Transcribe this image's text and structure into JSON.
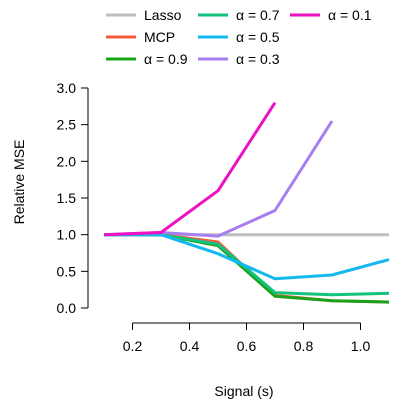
{
  "chart_data": {
    "type": "line",
    "title": "",
    "xlabel": "Signal (s)",
    "ylabel": "Relative MSE",
    "x": [
      0.1,
      0.3,
      0.5,
      0.7,
      0.9,
      1.1
    ],
    "xlim": [
      0.1,
      1.1
    ],
    "ylim": [
      0.0,
      3.0
    ],
    "xticks": [
      0.2,
      0.4,
      0.6,
      0.8,
      1.0
    ],
    "xtick_labels": [
      "0.2",
      "0.4",
      "0.6",
      "0.8",
      "1.0"
    ],
    "yticks": [
      0.0,
      0.5,
      1.0,
      1.5,
      2.0,
      2.5,
      3.0
    ],
    "ytick_labels": [
      "0.0",
      "0.5",
      "1.0",
      "1.5",
      "2.0",
      "2.5",
      "3.0"
    ],
    "grid": false,
    "legend_position": "top",
    "series": [
      {
        "name": "Lasso",
        "color": "#bebebe",
        "x": [
          0.1,
          0.3,
          0.5,
          0.7,
          0.9,
          1.1
        ],
        "values": [
          1.0,
          1.0,
          1.0,
          1.0,
          1.0,
          1.0
        ]
      },
      {
        "name": "MCP",
        "color": "#f4593c",
        "x": [
          0.1,
          0.3,
          0.5,
          0.7,
          0.9,
          1.1
        ],
        "values": [
          1.0,
          1.0,
          0.9,
          0.17,
          0.1,
          0.08
        ]
      },
      {
        "name": "α = 0.9",
        "color": "#1aa31a",
        "x": [
          0.1,
          0.3,
          0.5,
          0.7,
          0.9,
          1.1
        ],
        "values": [
          1.0,
          1.0,
          0.85,
          0.16,
          0.1,
          0.08
        ]
      },
      {
        "name": "α = 0.7",
        "color": "#12c27e",
        "x": [
          0.1,
          0.3,
          0.5,
          0.7,
          0.9,
          1.1
        ],
        "values": [
          1.0,
          1.0,
          0.87,
          0.21,
          0.18,
          0.2
        ]
      },
      {
        "name": "α = 0.5",
        "color": "#13b8ee",
        "x": [
          0.1,
          0.3,
          0.5,
          0.7,
          0.9,
          1.1
        ],
        "values": [
          1.0,
          1.0,
          0.74,
          0.4,
          0.45,
          0.66
        ]
      },
      {
        "name": "α = 0.3",
        "color": "#a77ef2",
        "x": [
          0.1,
          0.3,
          0.5,
          0.7,
          0.9
        ],
        "values": [
          1.0,
          1.03,
          0.98,
          1.33,
          2.55
        ]
      },
      {
        "name": "α = 0.1",
        "color": "#ec12c4",
        "x": [
          0.1,
          0.3,
          0.5,
          0.7
        ],
        "values": [
          1.0,
          1.03,
          1.6,
          2.8
        ]
      }
    ]
  }
}
